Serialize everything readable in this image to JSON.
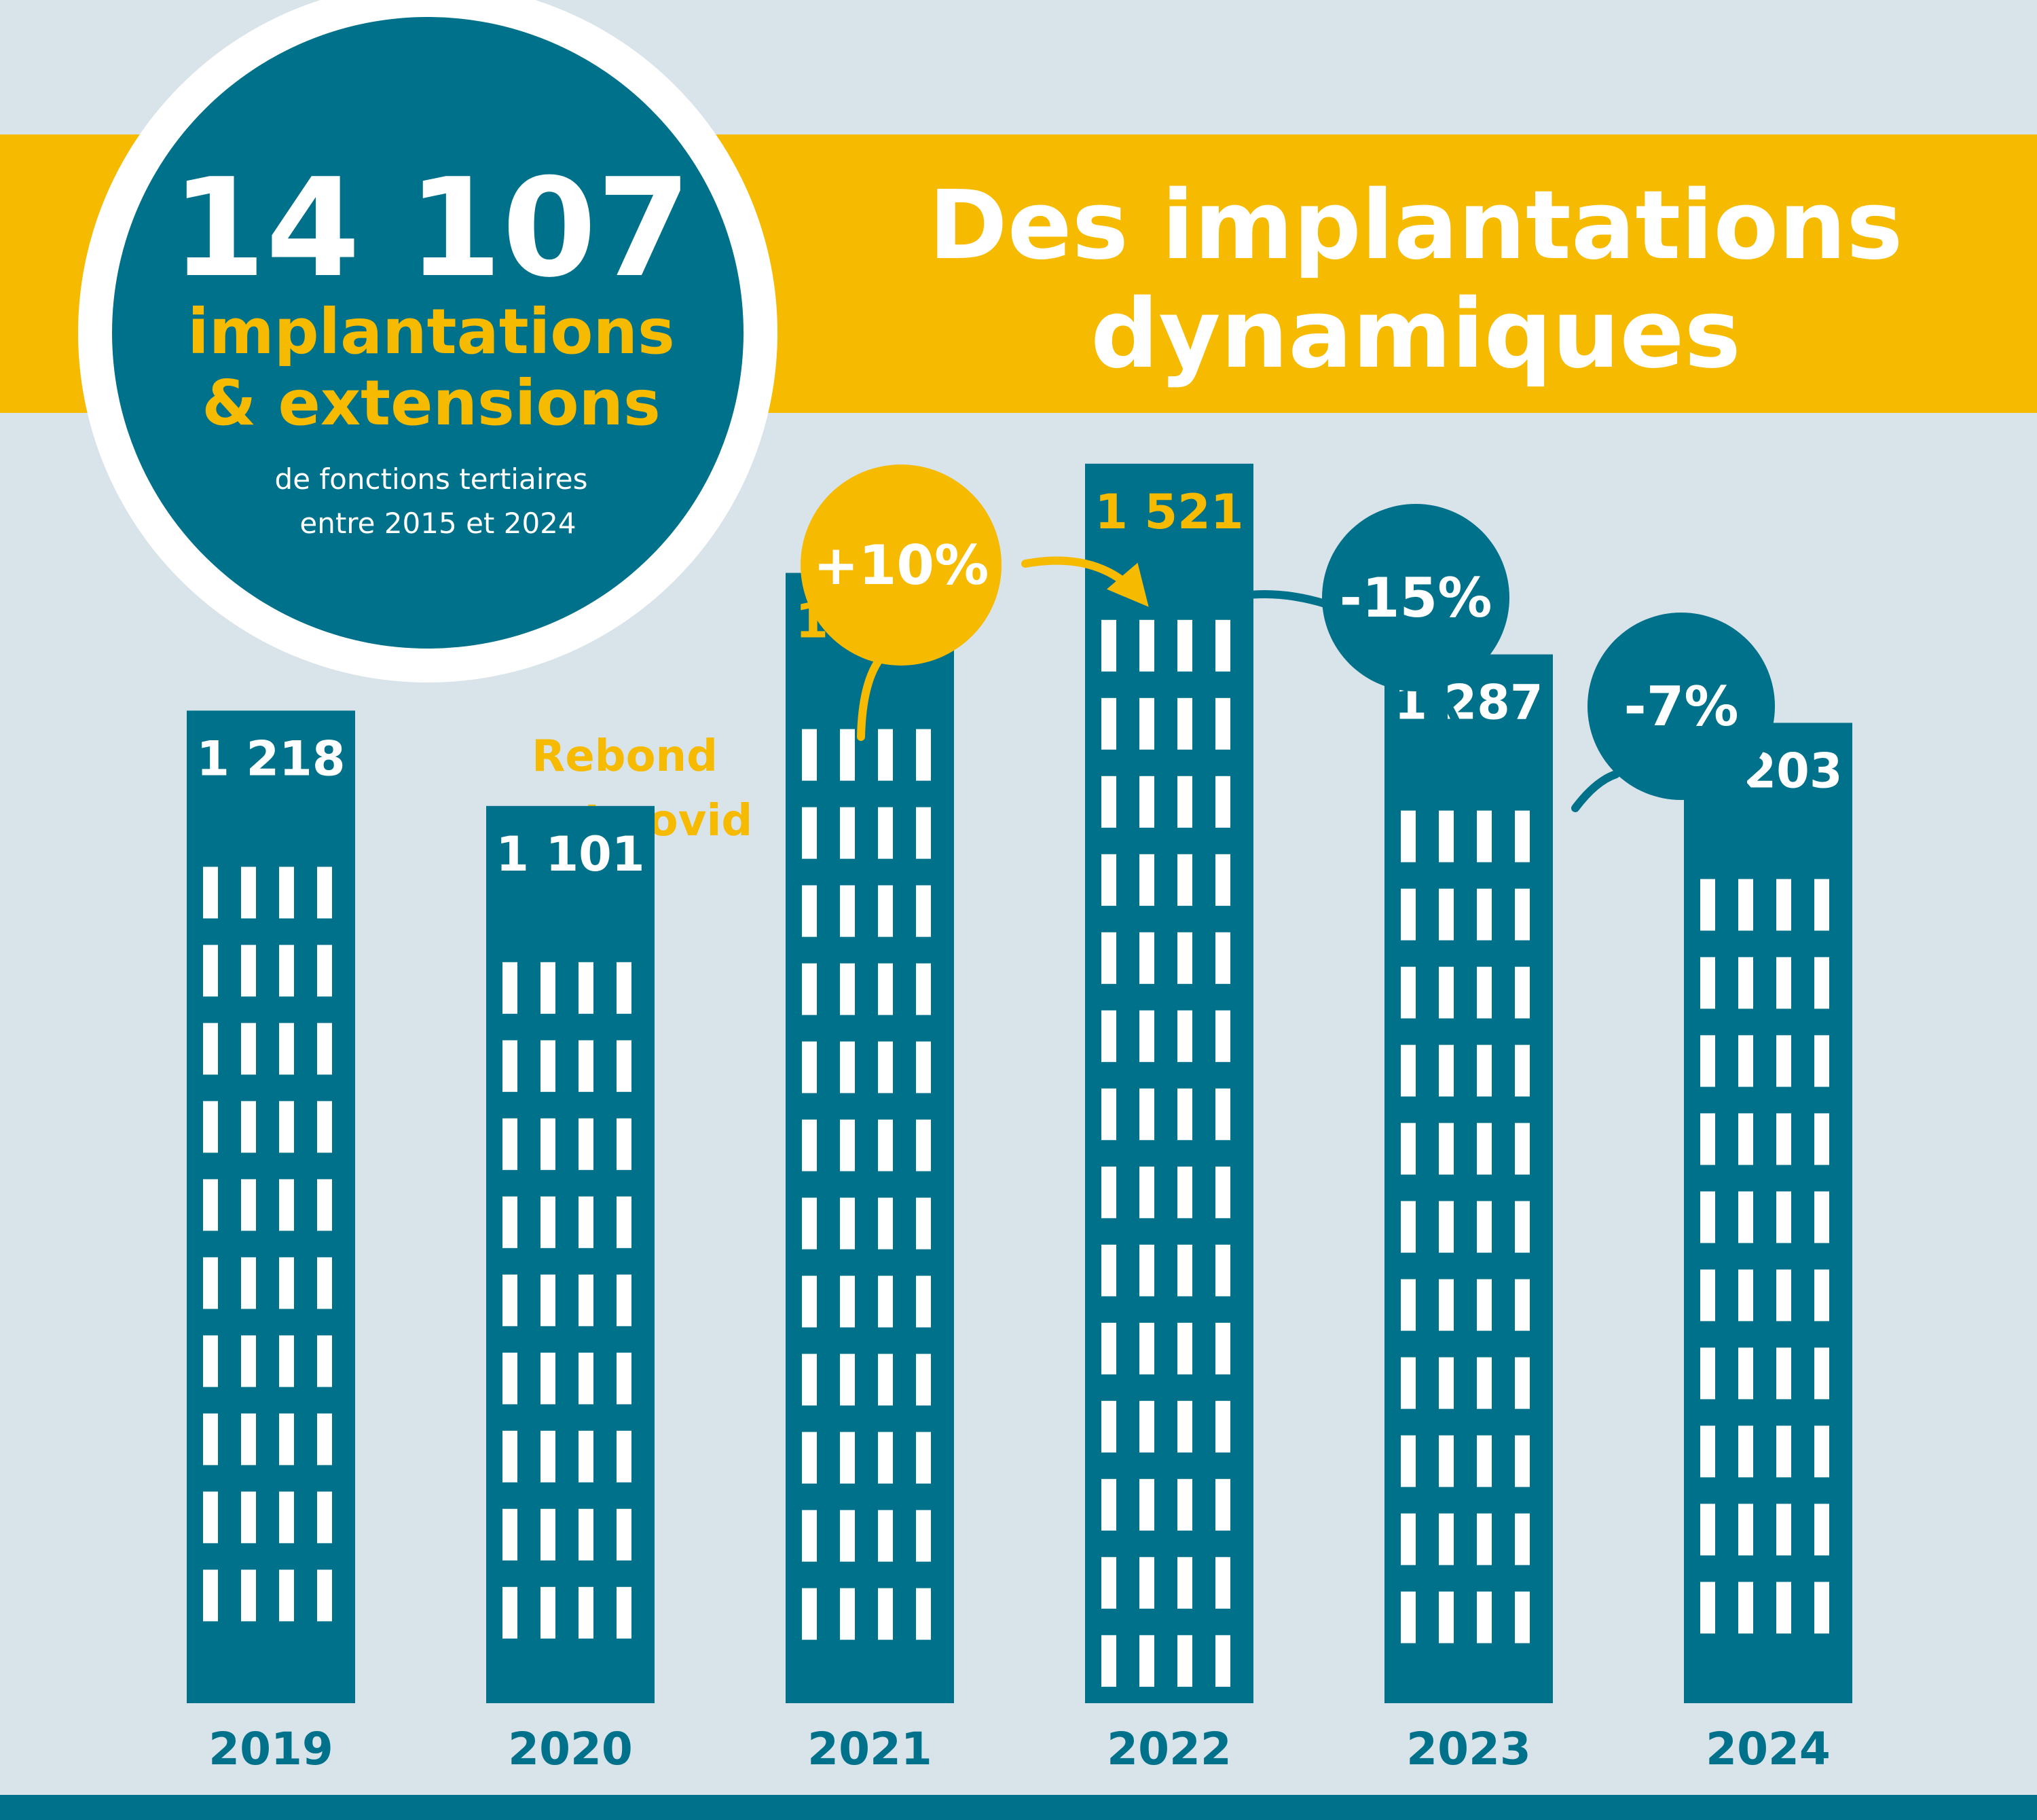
{
  "colors": {
    "background": "#d9e3ea",
    "teal": "#00718a",
    "yellow": "#f6bb00",
    "white": "#ffffff"
  },
  "headline": {
    "total": "14 107",
    "line1": "implantations",
    "line2": "& extensions",
    "sub1": "de fonctions tertiaires",
    "sub2": "entre 2015 et 2024"
  },
  "banner": {
    "line1": "Des implantations",
    "line2": "dynamiques"
  },
  "annotation": {
    "line1": "Rebond",
    "line2": "post-covid"
  },
  "chart_data": {
    "type": "bar",
    "categories": [
      "2019",
      "2020",
      "2021",
      "2022",
      "2023",
      "2024"
    ],
    "values": [
      1218,
      1101,
      1387,
      1521,
      1287,
      1203
    ],
    "value_labels": [
      "1 218",
      "1 101",
      "1 387",
      "1 521",
      "1 287",
      "1 203"
    ],
    "highlight": [
      false,
      false,
      true,
      true,
      false,
      false
    ],
    "changes": [
      {
        "from": "2021",
        "to": "2022",
        "label": "+10%",
        "color": "yellow"
      },
      {
        "from": "2022",
        "to": "2023",
        "label": "-15%",
        "color": "teal"
      },
      {
        "from": "2023",
        "to": "2024",
        "label": "-7%",
        "color": "teal"
      }
    ],
    "title": "Des implantations dynamiques",
    "xlabel": "",
    "ylabel": ""
  }
}
